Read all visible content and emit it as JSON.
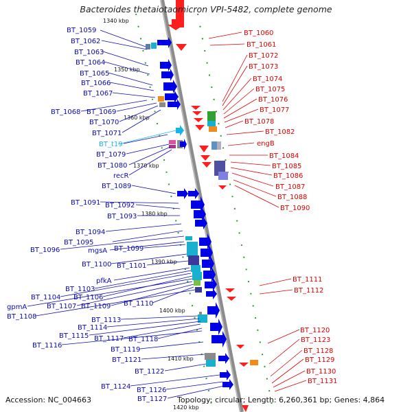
{
  "title": "Bacteroides thetaiotaomicron VPI-5482, complete genome",
  "footer": {
    "accession": "Accession: NC_004663",
    "summary": "Topology: circular; Length: 6,260,361 bp; Genes: 4,864"
  },
  "ticks": [
    "1340 kbp",
    "1350 kbp",
    "1360 kbp",
    "1370 kbp",
    "1380 kbp",
    "1390 kbp",
    "1400 kbp",
    "1410 kbp",
    "1420 kbp"
  ],
  "left_labels": [
    "BT_1059",
    "BT_1062",
    "BT_1063",
    "BT_1064",
    "BT_1065",
    "BT_1066",
    "BT_1067",
    "BT_1068",
    "BT_1069",
    "BT_1070",
    "BT_1071",
    "BT_t19",
    "BT_1079",
    "BT_1080",
    "recR",
    "BT_1089",
    "BT_1091",
    "BT_1092",
    "BT_1093",
    "BT_1094",
    "BT_1095",
    "BT_1096",
    "mgsA",
    "BT_1099",
    "BT_1100",
    "BT_1101",
    "pfkA",
    "BT_1103",
    "BT_1104",
    "BT_1106",
    "gpmA",
    "BT_1107",
    "BT_1109",
    "BT_1110",
    "BT_1108",
    "BT_1113",
    "BT_1114",
    "BT_1115",
    "BT_1117",
    "BT_1118",
    "BT_1116",
    "BT_1119",
    "BT_1121",
    "BT_1122",
    "BT_1124",
    "BT_1126",
    "BT_1127"
  ],
  "right_labels": [
    "BT_1060",
    "BT_1061",
    "BT_1072",
    "BT_1073",
    "BT_1074",
    "BT_1075",
    "BT_1076",
    "BT_1077",
    "BT_1078",
    "BT_1082",
    "engB",
    "BT_1084",
    "BT_1085",
    "BT_1086",
    "BT_1087",
    "BT_1088",
    "BT_1090",
    "BT_1111",
    "BT_1112",
    "BT_1120",
    "BT_1123",
    "BT_1128",
    "BT_1129",
    "BT_1130",
    "BT_1131"
  ],
  "colors": {
    "forward": "#0a0ab4",
    "reverse": "#e00000",
    "rna": "#19b4e6",
    "backbone": "#8c8c8c"
  }
}
